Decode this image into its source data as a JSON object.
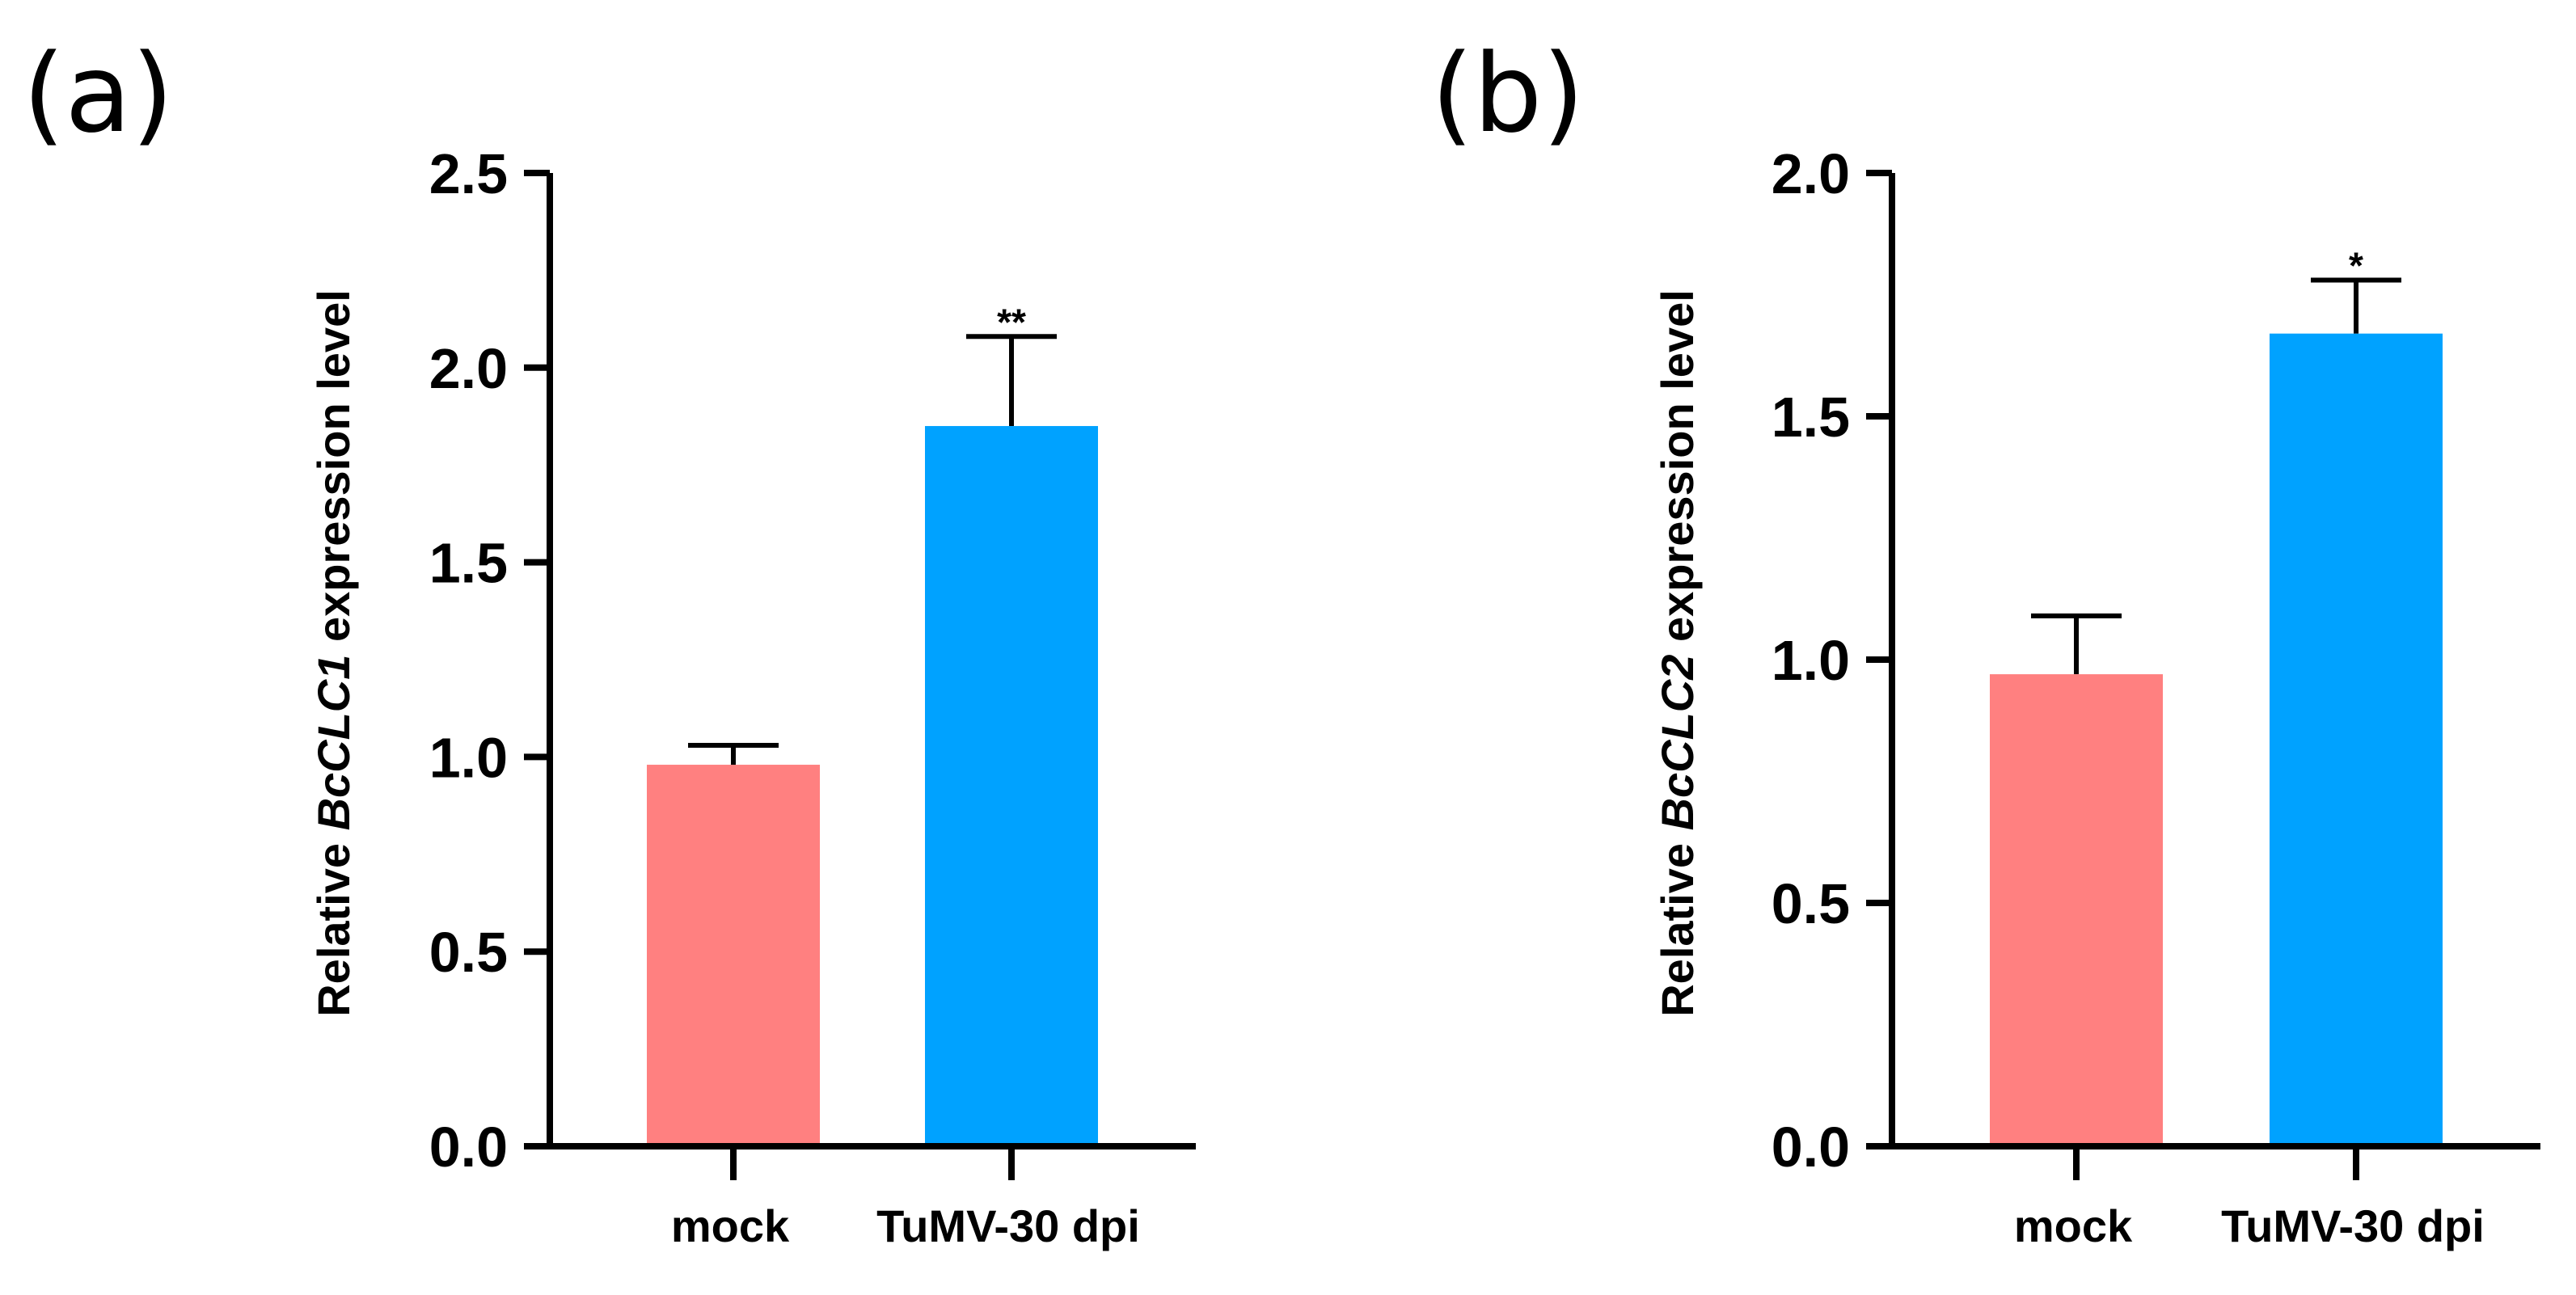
{
  "chart_data": [
    {
      "panel_label": "(a)",
      "type": "bar",
      "title": "",
      "xlabel": "",
      "ylabel": {
        "prefix": "Relative ",
        "gene": "BcCLC1",
        "suffix": " expression level"
      },
      "categories": [
        "mock",
        "TuMV-30 dpi"
      ],
      "values": [
        0.98,
        1.85
      ],
      "errors": [
        0.05,
        0.23
      ],
      "significance": [
        "",
        "**"
      ],
      "colors": [
        "#ff8080",
        "#00a2ff"
      ],
      "ylim": [
        0,
        2.5
      ],
      "yticks": [
        0.0,
        0.5,
        1.0,
        1.5,
        2.0,
        2.5
      ],
      "ytick_labels": [
        "0.0",
        "0.5",
        "1.0",
        "1.5",
        "2.0",
        "2.5"
      ],
      "grid": false
    },
    {
      "panel_label": "(b)",
      "type": "bar",
      "title": "",
      "xlabel": "",
      "ylabel": {
        "prefix": "Relative ",
        "gene": "BcCLC2",
        "suffix": " expression level"
      },
      "categories": [
        "mock",
        "TuMV-30 dpi"
      ],
      "values": [
        0.97,
        1.67
      ],
      "errors": [
        0.12,
        0.11
      ],
      "significance": [
        "",
        "*"
      ],
      "colors": [
        "#ff8080",
        "#00a2ff"
      ],
      "ylim": [
        0,
        2.0
      ],
      "yticks": [
        0.0,
        0.5,
        1.0,
        1.5,
        2.0
      ],
      "ytick_labels": [
        "0.0",
        "0.5",
        "1.0",
        "1.5",
        "2.0"
      ],
      "grid": false
    }
  ]
}
